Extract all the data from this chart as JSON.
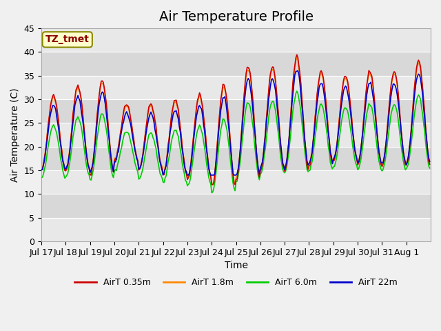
{
  "title": "Air Temperature Profile",
  "ylabel": "Air Temperature (C)",
  "xlabel": "Time",
  "ylim": [
    0,
    45
  ],
  "yticks": [
    0,
    5,
    10,
    15,
    20,
    25,
    30,
    35,
    40,
    45
  ],
  "colors": {
    "AirT 0.35m": "#cc0000",
    "AirT 1.8m": "#ff8800",
    "AirT 6.0m": "#00cc00",
    "AirT 22m": "#0000cc"
  },
  "legend_label": "TZ_tmet",
  "legend_box_color": "#ffffcc",
  "legend_box_edge": "#888800",
  "background_color": "#f0f0f0",
  "plot_bg_color": "#e8e8e8",
  "x_tick_labels": [
    "Jul 17",
    "Jul 18",
    "Jul 19",
    "Jul 20",
    "Jul 21",
    "Jul 22",
    "Jul 23",
    "Jul 24",
    "Jul 25",
    "Jul 26",
    "Jul 27",
    "Jul 28",
    "Jul 29",
    "Jul 30",
    "Jul 31",
    "Aug 1"
  ],
  "title_fontsize": 14,
  "label_fontsize": 10,
  "tick_fontsize": 9
}
